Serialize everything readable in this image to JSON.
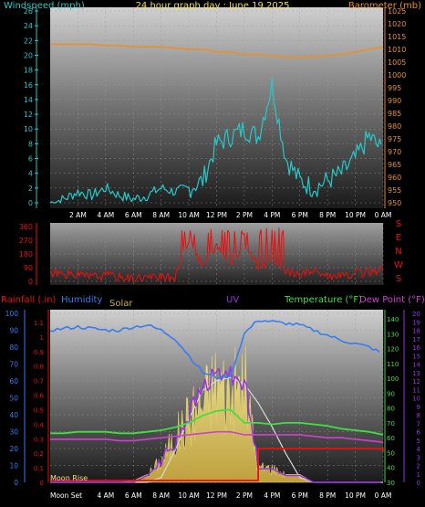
{
  "chart_data": [
    {
      "type": "line",
      "title": "24 hour graph day : June 19 2025",
      "ylabel": "Windspeed (mph)",
      "ylabel_right": "Barometer (mb)",
      "ylim": [
        0,
        26
      ],
      "ylim_right": [
        950,
        1025
      ],
      "yticks": [
        "0",
        "2",
        "4",
        "6",
        "8",
        "10",
        "12",
        "14",
        "16",
        "18",
        "20",
        "22",
        "24",
        "26"
      ],
      "yticks_right": [
        "950",
        "955",
        "960",
        "965",
        "970",
        "975",
        "980",
        "985",
        "990",
        "995",
        "1000",
        "1005",
        "1010",
        "1015",
        "1020",
        "1025"
      ],
      "xticks": [
        "2 AM",
        "4 AM",
        "6 AM",
        "8 AM",
        "10 AM",
        "12 PM",
        "2 PM",
        "4 PM",
        "6 PM",
        "8 PM",
        "10 PM",
        "0 AM"
      ],
      "x_hours": [
        0,
        1,
        2,
        3,
        4,
        5,
        6,
        7,
        8,
        9,
        10,
        11,
        12,
        13,
        14,
        15,
        16,
        17,
        18,
        19,
        20,
        21,
        22,
        23,
        24
      ],
      "series": [
        {
          "name": "Windspeed (mph)",
          "color": "#28c8c8",
          "values": [
            0,
            0.5,
            1.5,
            1,
            2,
            1,
            0.5,
            1,
            2,
            1.5,
            2,
            3,
            8,
            9,
            10,
            9,
            16,
            6,
            3,
            2,
            3,
            4,
            6,
            9,
            7
          ]
        },
        {
          "name": "Barometer (mb)",
          "color": "#e8902a",
          "values": [
            1012,
            1012,
            1012,
            1012,
            1011.5,
            1011.5,
            1011,
            1011,
            1011,
            1010.5,
            1010,
            1010,
            1009,
            1009,
            1008,
            1008,
            1007.5,
            1007,
            1007,
            1007,
            1007.5,
            1008,
            1009,
            1010,
            1011
          ]
        }
      ]
    },
    {
      "type": "line",
      "ylabel_right": "S E N W S",
      "direction_letters": [
        "S",
        "E",
        "N",
        "W",
        "S"
      ],
      "ylim": [
        0,
        360
      ],
      "yticks": [
        "0",
        "90",
        "180",
        "270",
        "360"
      ],
      "x_hours": [
        0,
        1,
        2,
        3,
        4,
        5,
        6,
        7,
        8,
        9,
        10,
        11,
        12,
        13,
        14,
        15,
        16,
        17,
        18,
        19,
        20,
        21,
        22,
        23,
        24
      ],
      "series": [
        {
          "name": "Wind direction",
          "color": "#e81010",
          "values": [
            60,
            50,
            40,
            30,
            40,
            30,
            20,
            30,
            20,
            30,
            280,
            100,
            220,
            120,
            240,
            90,
            150,
            60,
            50,
            70,
            40,
            30,
            50,
            60,
            80
          ]
        }
      ]
    },
    {
      "type": "line",
      "labels": {
        "rainfall": "Rainfall (.in)",
        "humidity": "Humidity",
        "solar": "Solar",
        "uv": "UV",
        "temperature": "Temperature (°F)",
        "dewpoint": "Dew Point (°F)"
      },
      "yticks_rain": [
        "0",
        "0.1",
        "0.2",
        "0.3",
        "0.4",
        "0.5",
        "0.6",
        "0.7",
        "0.8",
        "0.9",
        "1",
        "1.1"
      ],
      "yticks_humidity": [
        "0",
        "10",
        "20",
        "30",
        "40",
        "50",
        "60",
        "70",
        "80",
        "90",
        "100"
      ],
      "yticks_temp": [
        "30",
        "40",
        "50",
        "60",
        "70",
        "80",
        "90",
        "100",
        "110",
        "120",
        "130",
        "140"
      ],
      "yticks_uv": [
        "0",
        "1",
        "2",
        "3",
        "4",
        "5",
        "6",
        "7",
        "8",
        "9",
        "10",
        "11",
        "12",
        "13",
        "14",
        "15",
        "16",
        "17",
        "18",
        "19",
        "20"
      ],
      "xticks": [
        "4 AM",
        "6 AM",
        "8 AM",
        "10 AM",
        "12 PM",
        "2 PM",
        "4 PM",
        "6 PM",
        "8 PM",
        "10 PM",
        "0 AM"
      ],
      "annotations": [
        "Moon Rise",
        "Moon Set"
      ],
      "x_hours": [
        0,
        1,
        2,
        3,
        4,
        5,
        6,
        7,
        8,
        9,
        10,
        11,
        12,
        13,
        14,
        15,
        16,
        17,
        18,
        19,
        20,
        21,
        22,
        23,
        24
      ],
      "series": [
        {
          "name": "Humidity",
          "color": "#3a7cf0",
          "values": [
            90,
            91,
            92,
            91,
            90,
            90,
            92,
            93,
            90,
            85,
            75,
            65,
            62,
            63,
            88,
            96,
            95,
            94,
            93,
            90,
            87,
            84,
            82,
            80,
            76
          ]
        },
        {
          "name": "Temperature (°F)",
          "color": "#40e040",
          "values": [
            63,
            63,
            64,
            64,
            64,
            63,
            63,
            64,
            65,
            67,
            70,
            75,
            78,
            79,
            70,
            70,
            69,
            70,
            70,
            69,
            68,
            66,
            65,
            64,
            62
          ]
        },
        {
          "name": "Dew Point (°F)",
          "color": "#d040d0",
          "values": [
            59,
            59,
            59,
            59,
            59,
            58,
            58,
            59,
            60,
            61,
            62,
            63,
            64,
            64,
            62,
            62,
            62,
            62,
            62,
            61,
            60,
            60,
            59,
            58,
            57
          ]
        },
        {
          "name": "Rainfall (.in)",
          "color": "#e81010",
          "values": [
            0,
            0,
            0,
            0,
            0,
            0,
            0,
            0,
            0,
            0,
            0,
            0,
            0,
            0,
            0,
            0.22,
            0.22,
            0.22,
            0.22,
            0.22,
            0.22,
            0.22,
            0.22,
            0.22,
            0.2
          ]
        },
        {
          "name": "UV",
          "color": "#9a30e8",
          "values": [
            0,
            0,
            0,
            0,
            0,
            0,
            0,
            0.5,
            1.5,
            3,
            5,
            7,
            8,
            8,
            7.5,
            1,
            1,
            0.5,
            0.5,
            0,
            0,
            0,
            0,
            0,
            0
          ]
        },
        {
          "name": "Solar",
          "color": "#f0e080",
          "values": [
            0,
            0,
            0,
            0,
            0,
            0,
            0.1,
            0.5,
            1.5,
            3,
            4.5,
            5.5,
            7,
            6,
            7,
            1,
            1,
            0.5,
            0.5,
            0,
            0,
            0,
            0,
            0,
            0
          ]
        },
        {
          "name": "Solar max",
          "color": "#d8d8d8",
          "values": [
            0,
            0,
            0,
            0,
            0,
            0,
            0,
            0,
            0.3,
            2,
            4,
            5.8,
            6.4,
            6.6,
            6.2,
            5,
            3.5,
            1.8,
            0.3,
            0,
            0,
            0,
            0,
            0,
            0
          ]
        }
      ]
    }
  ]
}
